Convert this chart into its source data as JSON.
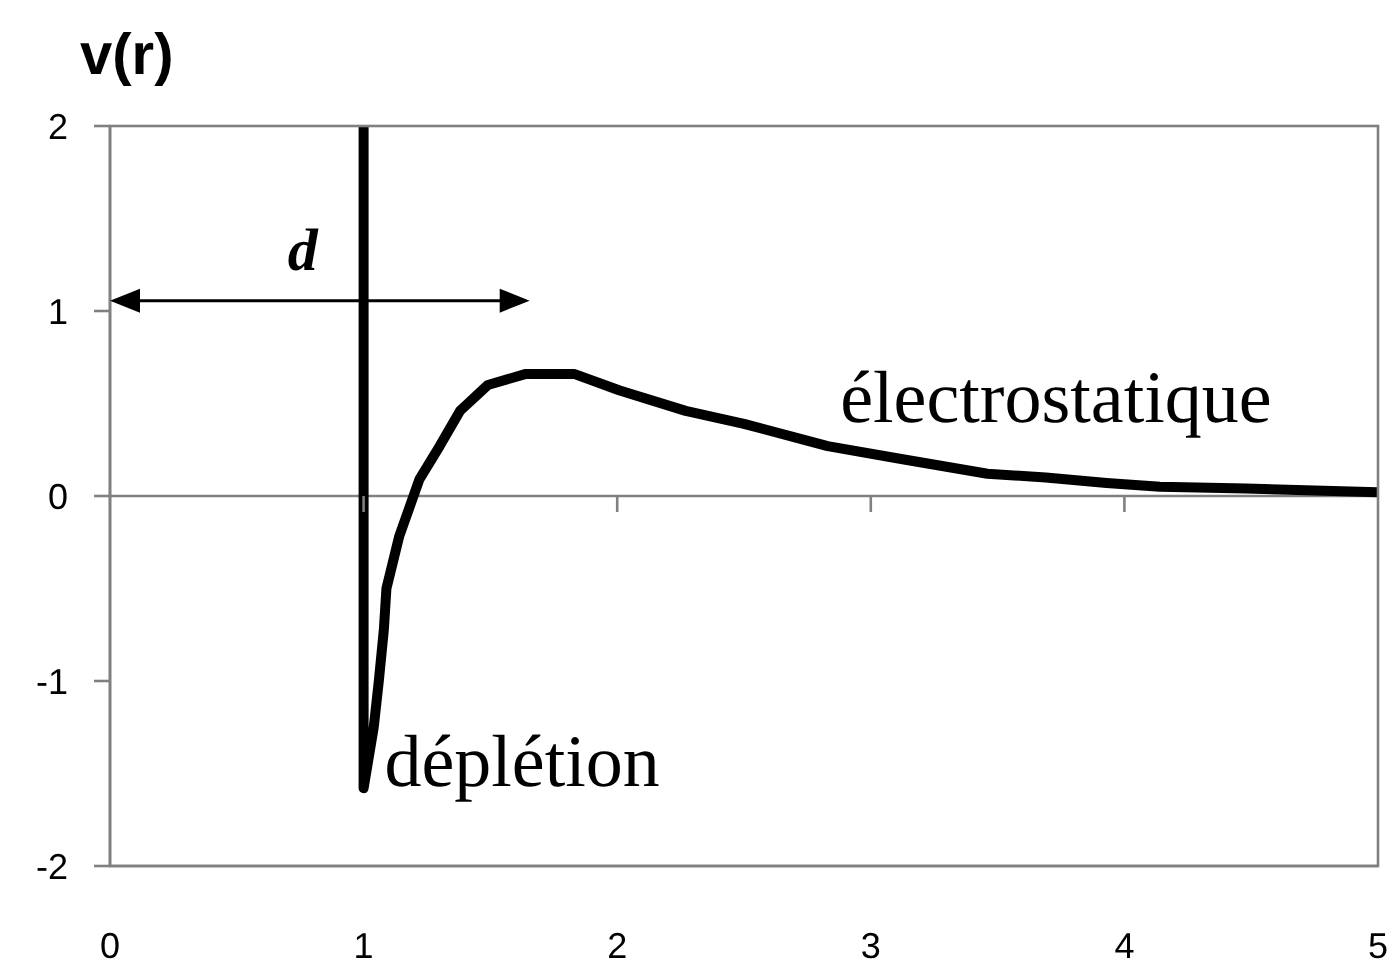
{
  "chart_data": {
    "type": "line",
    "ylabel": "v(r)",
    "x": [
      1,
      1,
      1.04,
      1.06,
      1.08,
      1.09,
      1.14,
      1.22,
      1.3,
      1.38,
      1.49,
      1.64,
      1.83,
      2.01,
      2.27,
      2.5,
      2.83,
      3.12,
      3.46,
      3.69,
      3.93,
      4.14,
      4.48,
      5
    ],
    "values": [
      2,
      -1.58,
      -1.25,
      -1,
      -0.72,
      -0.5,
      -0.22,
      0.09,
      0.27,
      0.46,
      0.6,
      0.66,
      0.66,
      0.57,
      0.46,
      0.39,
      0.27,
      0.2,
      0.12,
      0.1,
      0.07,
      0.05,
      0.04,
      0.02
    ],
    "color": "#000000",
    "xlim": [
      0,
      5
    ],
    "xticks": [
      0,
      1,
      2,
      3,
      4,
      5
    ],
    "ylim": [
      -2,
      2
    ],
    "yticks": [
      -2,
      -1,
      0,
      1,
      2
    ],
    "ref_lines": [
      {
        "axis": "y",
        "value": 0,
        "color": "#808080"
      }
    ],
    "annotations": [
      "d",
      "électrostatique",
      "déplétion"
    ]
  }
}
